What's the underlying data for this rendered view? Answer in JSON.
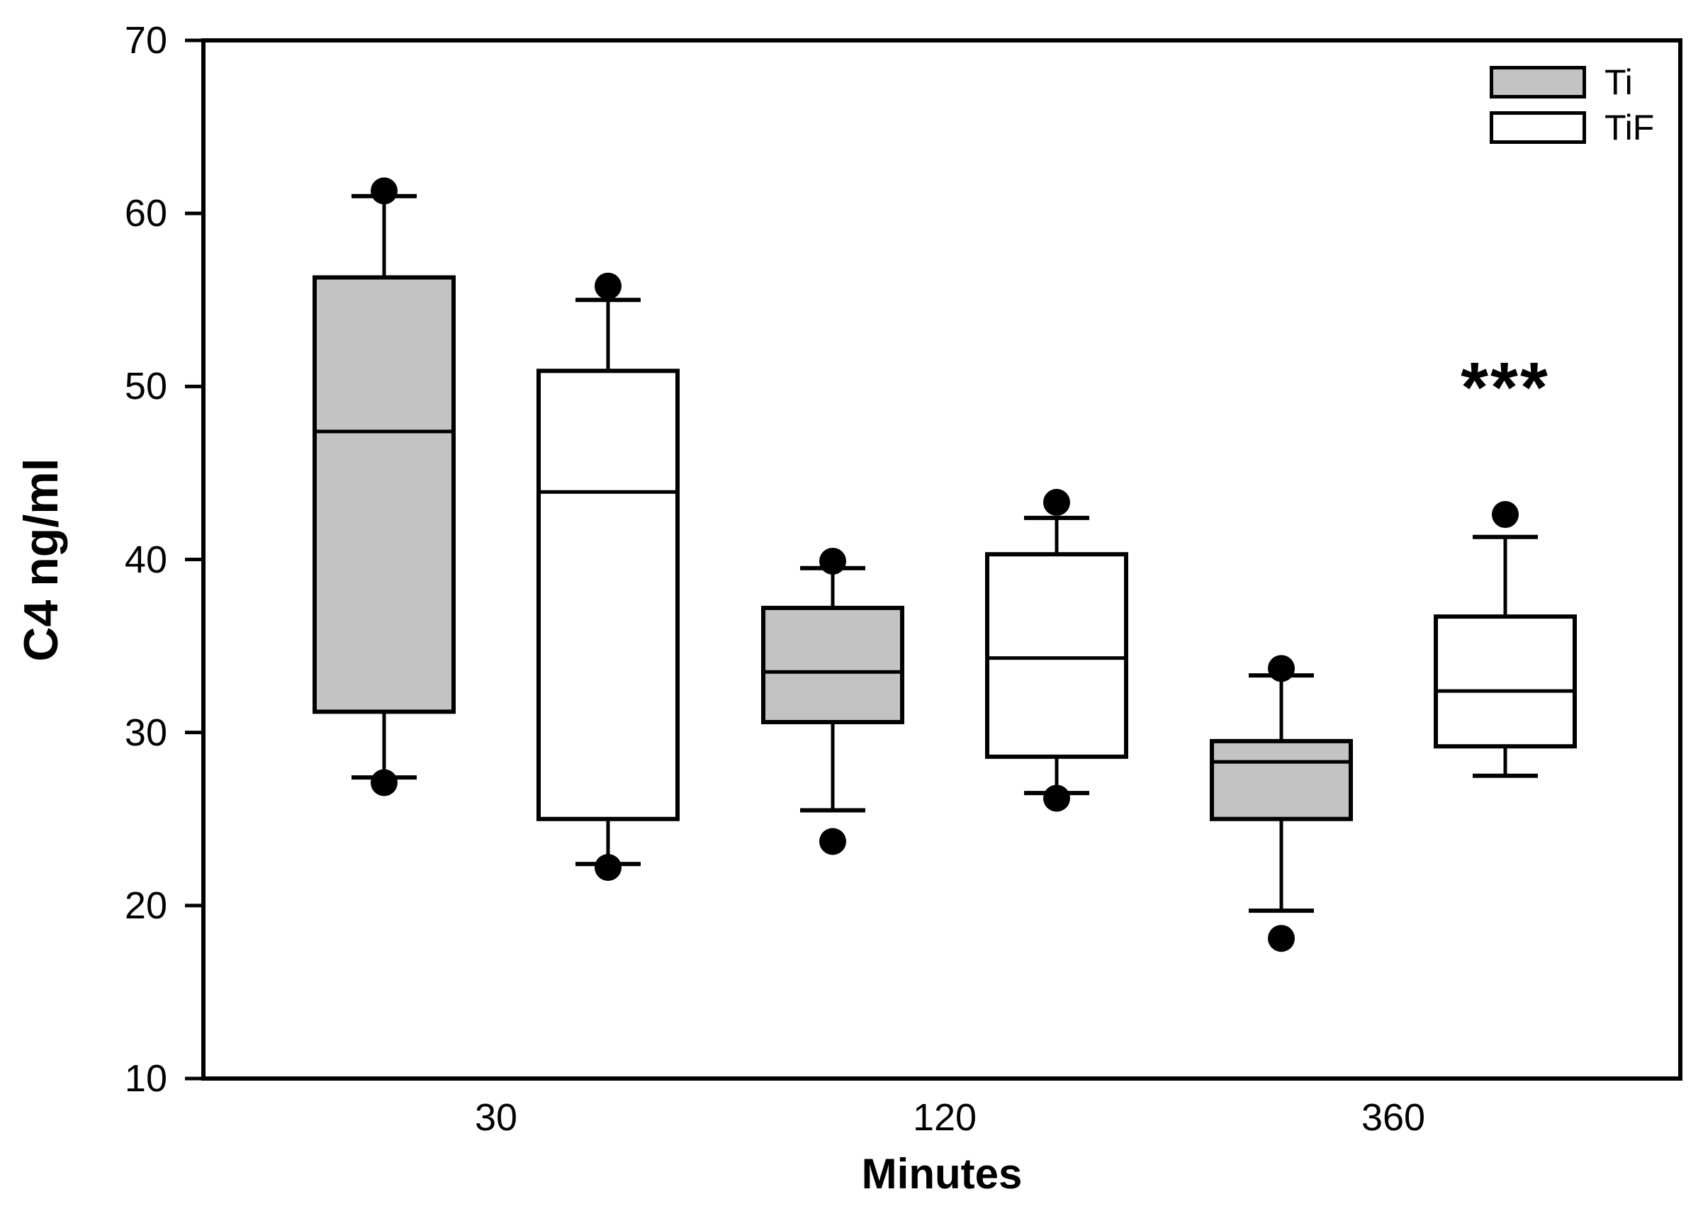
{
  "chart_data": {
    "type": "boxplot",
    "title": "",
    "xlabel": "Minutes",
    "ylabel": "C4 ng/ml",
    "ylim": [
      10,
      70
    ],
    "y_ticks": [
      70,
      60,
      50,
      40,
      30,
      20,
      10
    ],
    "categories": [
      "30",
      "120",
      "360"
    ],
    "grid": false,
    "legend_position": "top-right-inside",
    "frame_color": "#000000",
    "series": [
      {
        "name": "Ti",
        "fill": "#c3c3c3",
        "boxes": [
          {
            "category": "30",
            "whisker_low": 27.4,
            "q1": 31.2,
            "median": 47.4,
            "q3": 56.3,
            "whisker_high": 61.0,
            "outliers": [
              27.1,
              61.3
            ]
          },
          {
            "category": "120",
            "whisker_low": 25.5,
            "q1": 30.6,
            "median": 33.5,
            "q3": 37.2,
            "whisker_high": 39.5,
            "outliers": [
              23.7,
              39.9
            ]
          },
          {
            "category": "360",
            "whisker_low": 19.7,
            "q1": 25.0,
            "median": 28.3,
            "q3": 29.5,
            "whisker_high": 33.3,
            "outliers": [
              18.1,
              33.7
            ]
          }
        ]
      },
      {
        "name": "TiF",
        "fill": "#ffffff",
        "boxes": [
          {
            "category": "30",
            "whisker_low": 22.4,
            "q1": 25.0,
            "median": 43.9,
            "q3": 50.9,
            "whisker_high": 55.0,
            "outliers": [
              22.2,
              55.8
            ]
          },
          {
            "category": "120",
            "whisker_low": 26.5,
            "q1": 28.6,
            "median": 34.3,
            "q3": 40.3,
            "whisker_high": 42.4,
            "outliers": [
              26.2,
              43.3
            ]
          },
          {
            "category": "360",
            "whisker_low": 27.5,
            "q1": 29.2,
            "median": 32.4,
            "q3": 36.7,
            "whisker_high": 41.3,
            "outliers": [
              42.6
            ]
          }
        ]
      }
    ],
    "annotations": [
      {
        "text": "***",
        "category": "360",
        "series": "TiF",
        "y": 52
      }
    ]
  }
}
